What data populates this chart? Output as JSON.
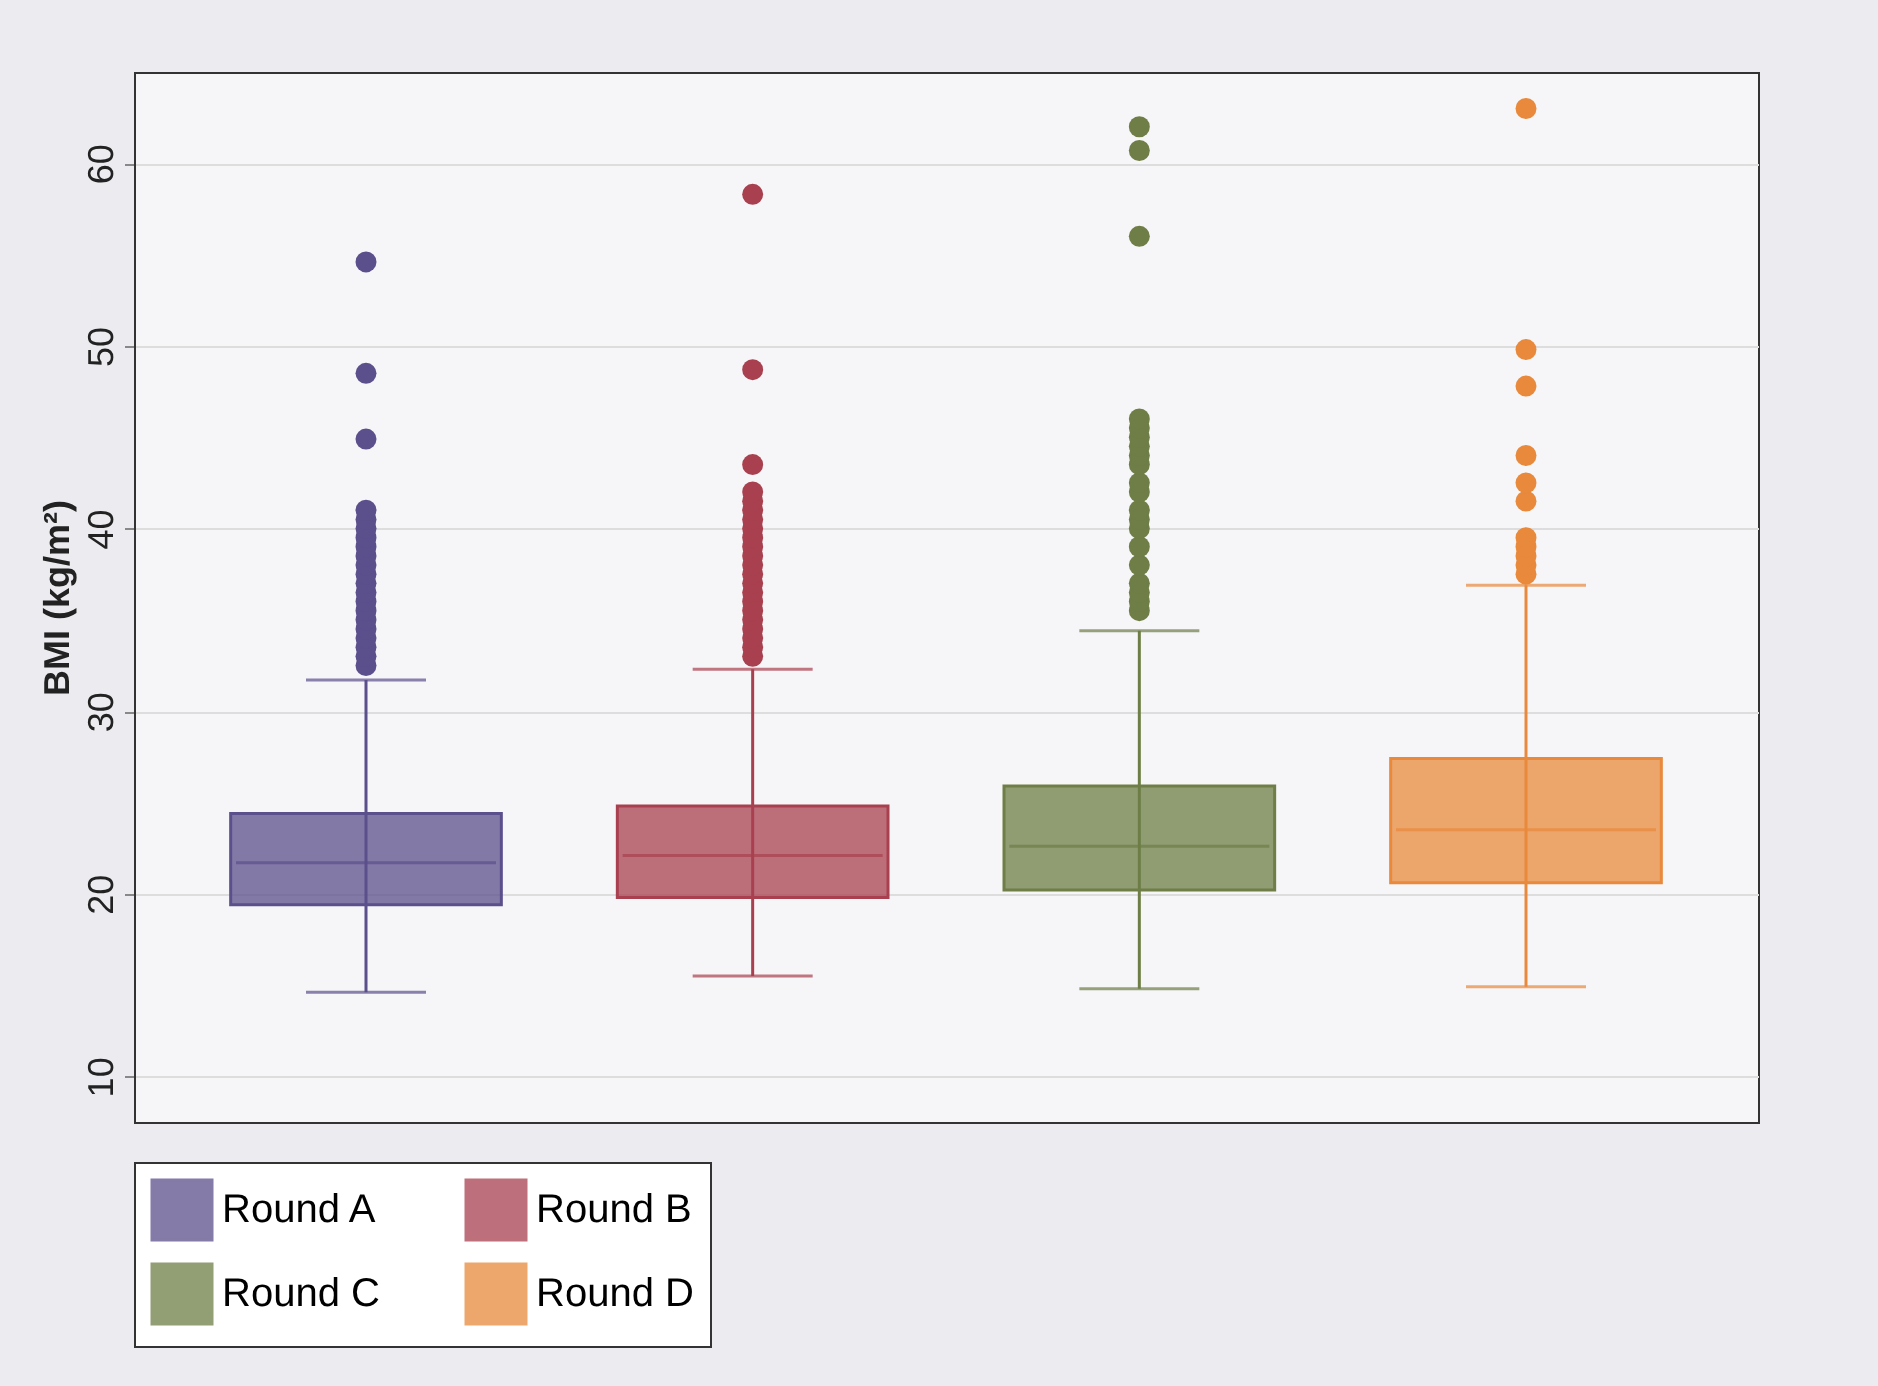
{
  "chart_data": {
    "type": "box",
    "ylabel": "BMI (kg/m²)",
    "categories": [
      null,
      null,
      null,
      null
    ],
    "ylim": [
      7.5,
      65
    ],
    "yticks": [
      10,
      20,
      30,
      40,
      50,
      60
    ],
    "grid": "y",
    "legend": "bottom",
    "tick_labels": "y",
    "series": [
      {
        "name": "Round A",
        "color": "#5b4f8c",
        "boxes": [
          {
            "low": 14.6,
            "q1": 19.4,
            "median": 21.7,
            "q3": 24.4,
            "high": 31.7,
            "outliers": [
              32.5,
              33,
              33.5,
              34,
              34.5,
              35,
              35.5,
              36,
              36.5,
              37,
              37.5,
              38,
              38.5,
              39,
              39.5,
              40,
              40.5,
              41,
              44.9,
              48.5,
              54.6
            ]
          },
          null,
          null,
          null
        ]
      },
      {
        "name": "Round B",
        "color": "#a8404f",
        "boxes": [
          null,
          {
            "low": 15.5,
            "q1": 19.8,
            "median": 22.1,
            "q3": 24.8,
            "high": 32.3,
            "outliers": [
              33,
              33.5,
              34,
              34.5,
              35,
              35.5,
              36,
              36.5,
              37,
              37.5,
              38,
              38.5,
              39,
              39.5,
              40,
              40.5,
              41,
              41.5,
              42,
              43.5,
              48.7,
              58.3
            ]
          },
          null,
          null
        ]
      },
      {
        "name": "Round C",
        "color": "#6e7e46",
        "boxes": [
          null,
          null,
          {
            "low": 14.8,
            "q1": 20.2,
            "median": 22.6,
            "q3": 25.9,
            "high": 34.4,
            "outliers": [
              35.5,
              36,
              36.5,
              37,
              38,
              39,
              40,
              40.5,
              41,
              42,
              42.5,
              43.5,
              44,
              44.5,
              45,
              45.5,
              46,
              56,
              60.7,
              62
            ]
          },
          null
        ]
      },
      {
        "name": "Round D",
        "color": "#e8893c",
        "boxes": [
          null,
          null,
          null,
          {
            "low": 14.9,
            "q1": 20.6,
            "median": 23.5,
            "q3": 27.4,
            "high": 36.9,
            "outliers": [
              37.5,
              38,
              38.5,
              39,
              39.5,
              41.5,
              42.5,
              44,
              47.8,
              49.8,
              63
            ]
          }
        ]
      }
    ]
  }
}
